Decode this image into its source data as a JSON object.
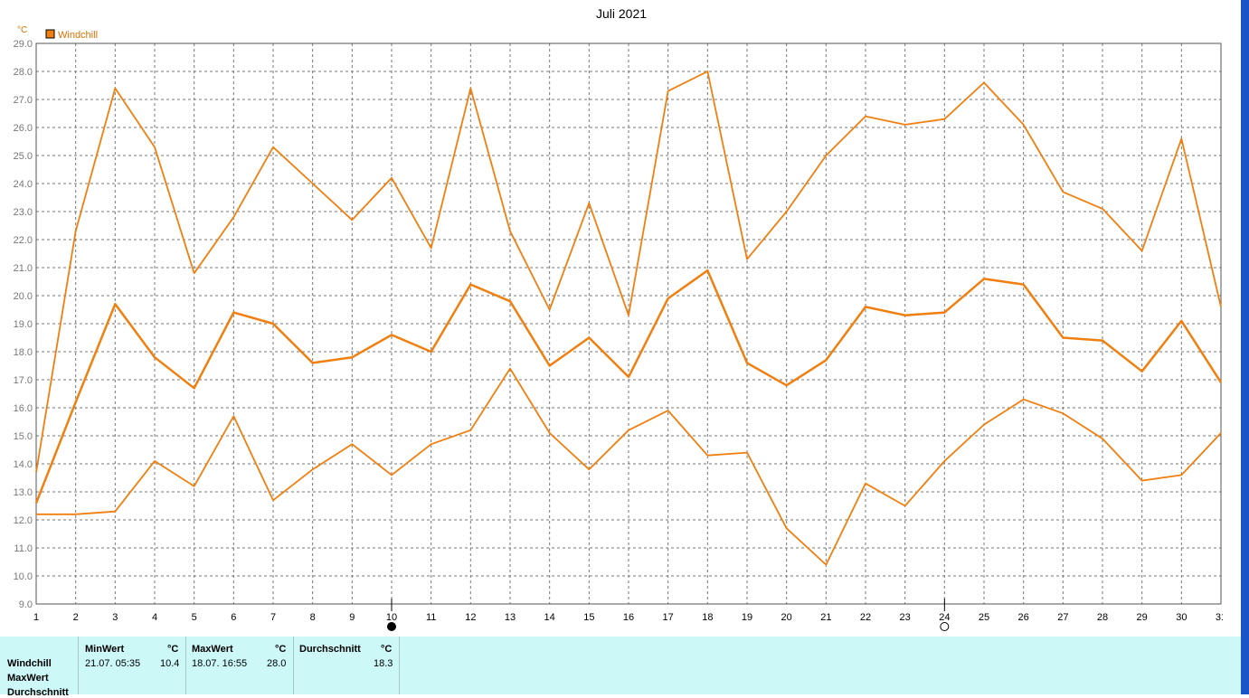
{
  "chart_data": {
    "type": "line",
    "title": "Juli 2021",
    "unit": "°C",
    "legend": [
      "Windchill"
    ],
    "legend_position": "top-left",
    "x": [
      1,
      2,
      3,
      4,
      5,
      6,
      7,
      8,
      9,
      10,
      11,
      12,
      13,
      14,
      15,
      16,
      17,
      18,
      19,
      20,
      21,
      22,
      23,
      24,
      25,
      26,
      27,
      28,
      29,
      30,
      31
    ],
    "xlim": [
      1,
      31
    ],
    "ylim": [
      9.0,
      29.0
    ],
    "yticks": [
      "9.0",
      "10.0",
      "11.0",
      "12.0",
      "13.0",
      "14.0",
      "15.0",
      "16.0",
      "17.0",
      "18.0",
      "19.0",
      "20.0",
      "21.0",
      "22.0",
      "23.0",
      "24.0",
      "25.0",
      "26.0",
      "27.0",
      "28.0",
      "29.0"
    ],
    "grid": true,
    "series": [
      {
        "values": [
          13.7,
          22.3,
          27.4,
          25.3,
          20.8,
          22.8,
          25.3,
          24.0,
          22.7,
          24.2,
          21.7,
          27.4,
          22.3,
          19.5,
          23.3,
          19.3,
          27.3,
          28.0,
          21.3,
          23.0,
          25.0,
          26.4,
          26.1,
          26.3,
          27.6,
          26.1,
          23.7,
          23.1,
          21.6,
          25.6,
          19.6
        ]
      },
      {
        "values": [
          12.6,
          16.2,
          19.7,
          17.8,
          16.7,
          19.4,
          19.0,
          17.6,
          17.8,
          18.6,
          18.0,
          20.4,
          19.8,
          17.5,
          18.5,
          17.1,
          19.9,
          20.9,
          17.6,
          16.8,
          17.7,
          19.6,
          19.3,
          19.4,
          20.6,
          20.4,
          18.5,
          18.4,
          17.3,
          19.1,
          16.9
        ]
      },
      {
        "values": [
          12.2,
          12.2,
          12.3,
          14.1,
          13.2,
          15.7,
          12.7,
          13.8,
          14.7,
          13.6,
          14.7,
          15.2,
          17.4,
          15.1,
          13.8,
          15.2,
          15.9,
          14.3,
          14.4,
          11.7,
          10.4,
          13.3,
          12.5,
          14.1,
          15.4,
          16.3,
          15.8,
          14.9,
          13.4,
          13.6,
          15.1
        ]
      }
    ],
    "moon_phases": [
      {
        "day": 10,
        "phase": "new"
      },
      {
        "day": 24,
        "phase": "full"
      }
    ]
  },
  "colors": {
    "series": "#f07f10",
    "grid": "#777777",
    "stats_bg": "#ccf8f8"
  },
  "stats": {
    "row_labels": [
      "Windchill",
      "MaxWert",
      "Durchschnitt"
    ],
    "min": {
      "header": "MinWert",
      "unit": "°C",
      "datetime": "21.07.  05:35",
      "value": "10.4"
    },
    "max": {
      "header": "MaxWert",
      "unit": "°C",
      "datetime": "18.07.  16:55",
      "value": "28.0"
    },
    "avg": {
      "header": "Durchschnitt",
      "unit": "°C",
      "value": "18.3"
    }
  }
}
